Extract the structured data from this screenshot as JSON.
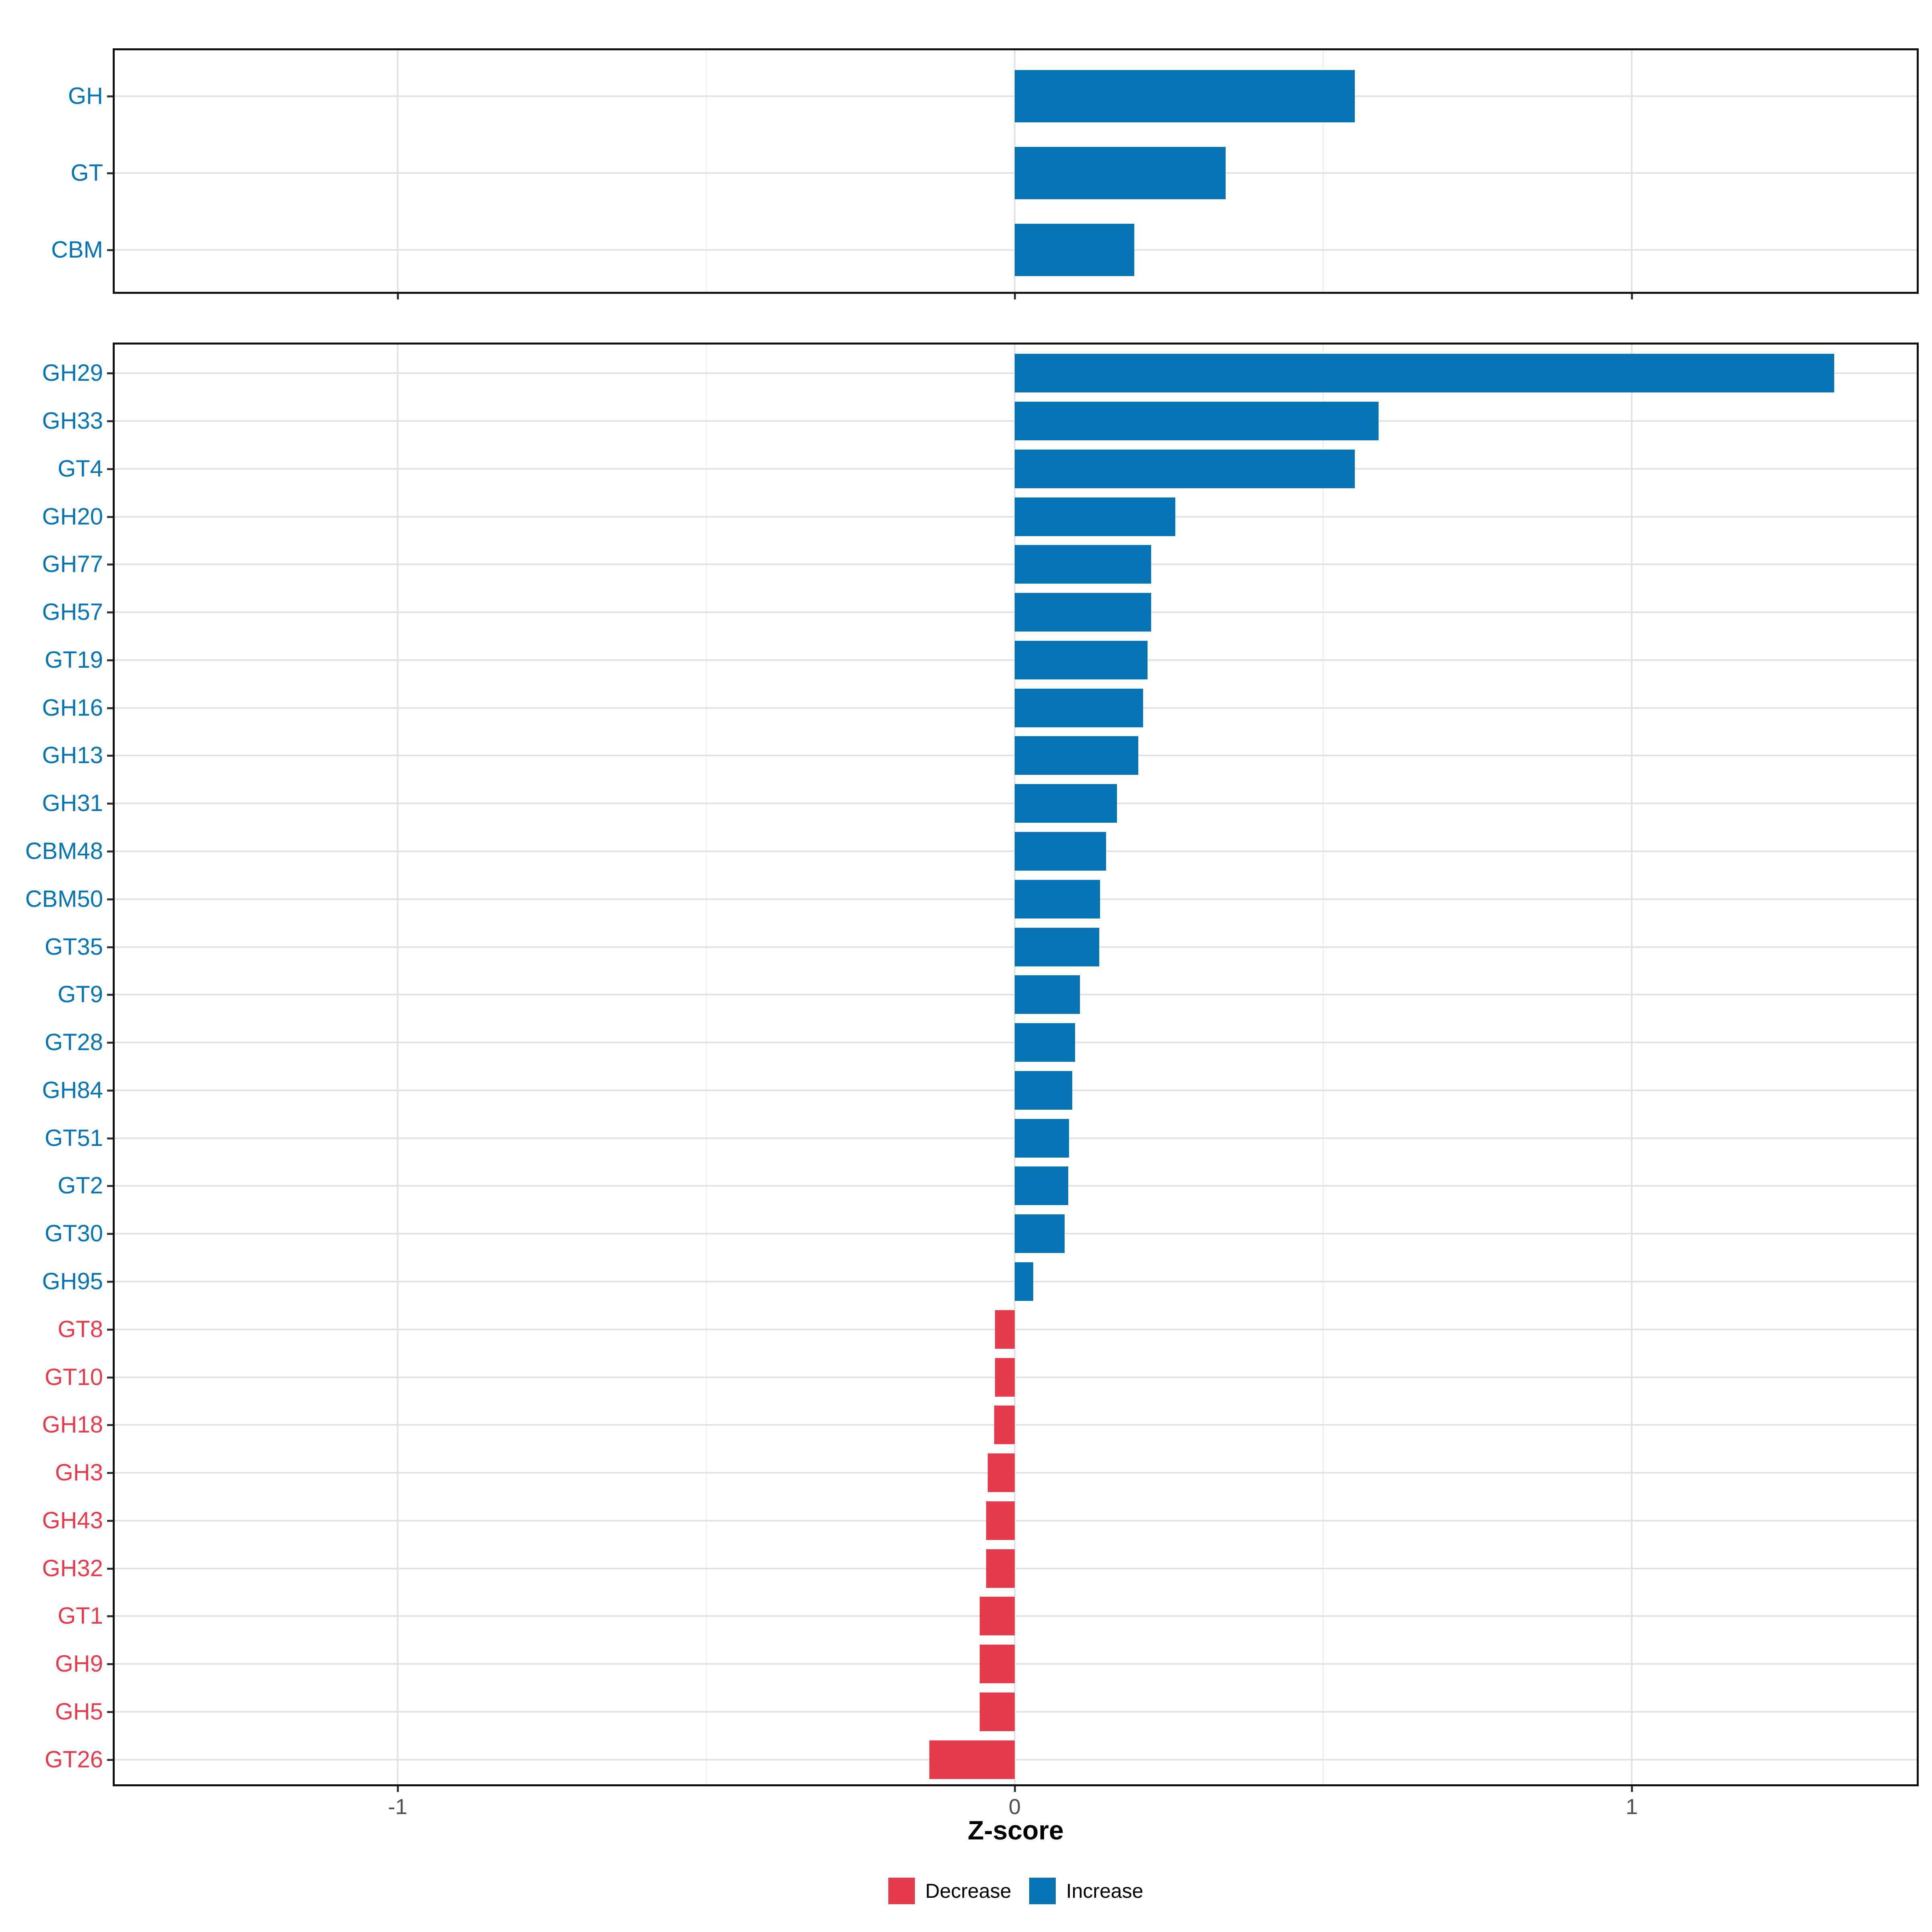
{
  "figure": {
    "x_tick_labels": [
      "-1",
      "0",
      "1"
    ]
  },
  "colors": {
    "increase": "#0573B4",
    "decrease": "#E63B4C",
    "grid_major": "#E2E2E2",
    "grid_minor": "#F1F1F1",
    "axis_text": "#4D4D4D",
    "tick_mark": "#333333",
    "panel_border": "#121212",
    "background": "#FFFFFF"
  },
  "chart_data": {
    "type": "bar",
    "orientation": "horizontal",
    "title": "",
    "xlabel": "Z-score",
    "ylabel": "",
    "x_ticks": [
      -1,
      0,
      1
    ],
    "x_minor_ticks": [
      -0.5,
      0.5
    ],
    "xlim": [
      -1.46,
      1.47
    ],
    "grid": true,
    "legend_position": "bottom",
    "legend": [
      {
        "label": "Decrease",
        "color": "#E63B4C"
      },
      {
        "label": "Increase",
        "color": "#0573B4"
      }
    ],
    "panels": [
      {
        "name": "cazyme-classes",
        "categories": [
          "GH",
          "GT",
          "CBM"
        ],
        "values": [
          0.551,
          0.342,
          0.194
        ]
      },
      {
        "name": "cazyme-families",
        "categories": [
          "GH29",
          "GH33",
          "GT4",
          "GH20",
          "GH77",
          "GH57",
          "GT19",
          "GH16",
          "GH13",
          "GH31",
          "CBM48",
          "CBM50",
          "GT35",
          "GT9",
          "GT28",
          "GH84",
          "GT51",
          "GT2",
          "GT30",
          "GH95",
          "GT8",
          "GT10",
          "GH18",
          "GH3",
          "GH43",
          "GH32",
          "GT1",
          "GH9",
          "GH5",
          "GT26"
        ],
        "values": [
          1.328,
          0.59,
          0.551,
          0.26,
          0.221,
          0.221,
          0.215,
          0.208,
          0.2,
          0.166,
          0.148,
          0.138,
          0.137,
          0.106,
          0.098,
          0.093,
          0.088,
          0.087,
          0.081,
          0.03,
          -0.032,
          -0.032,
          -0.033,
          -0.044,
          -0.046,
          -0.046,
          -0.057,
          -0.057,
          -0.057,
          -0.138
        ]
      }
    ]
  }
}
